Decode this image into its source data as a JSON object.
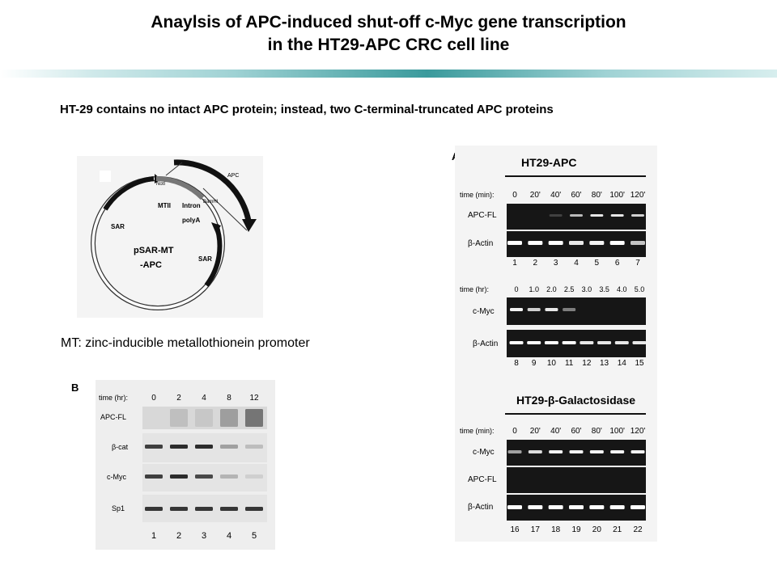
{
  "title_line1": "Anaylsis of APC-induced shut-off c-Myc gene transcription",
  "title_line2": "in the HT29-APC CRC cell line",
  "subtitle": "HT-29 contains no intact APC protein; instead, two C-terminal-truncated APC proteins",
  "plasmid": {
    "name_line1": "pSAR-MT",
    "name_line2": "-APC",
    "labels": {
      "notl": "NotI",
      "apc": "APC",
      "bamhi": "BamHI",
      "mtii": "MTII",
      "intron": "Intron",
      "polya": "polyA",
      "sar_left": "SAR",
      "sar_right": "SAR"
    },
    "caption": "MT: zinc-inducible metallothionein promoter"
  },
  "panelA": {
    "letter": "A",
    "gel1": {
      "header": "HT29-APC",
      "time_label": "time (min):",
      "times": [
        "0",
        "20'",
        "40'",
        "60'",
        "80'",
        "100'",
        "120'"
      ],
      "rows": [
        "APC-FL",
        "β-Actin"
      ],
      "lanes": [
        "1",
        "2",
        "3",
        "4",
        "5",
        "6",
        "7"
      ]
    },
    "gel2": {
      "time_label": "time (hr):",
      "times": [
        "0",
        "1.0",
        "2.0",
        "2.5",
        "3.0",
        "3.5",
        "4.0",
        "5.0"
      ],
      "rows": [
        "c-Myc",
        "β-Actin"
      ],
      "lanes": [
        "8",
        "9",
        "10",
        "11",
        "12",
        "13",
        "14",
        "15"
      ]
    },
    "gel3": {
      "header": "HT29-β-Galactosidase",
      "time_label": "time (min):",
      "times": [
        "0",
        "20'",
        "40'",
        "60'",
        "80'",
        "100'",
        "120'"
      ],
      "rows": [
        "c-Myc",
        "APC-FL",
        "β-Actin"
      ],
      "lanes": [
        "16",
        "17",
        "18",
        "19",
        "20",
        "21",
        "22"
      ]
    }
  },
  "panelB": {
    "letter": "B",
    "time_label": "time (hr):",
    "times": [
      "0",
      "2",
      "4",
      "8",
      "12"
    ],
    "rows": [
      "APC-FL",
      "β-cat",
      "c-Myc",
      "Sp1"
    ],
    "lanes": [
      "1",
      "2",
      "3",
      "4",
      "5"
    ]
  }
}
